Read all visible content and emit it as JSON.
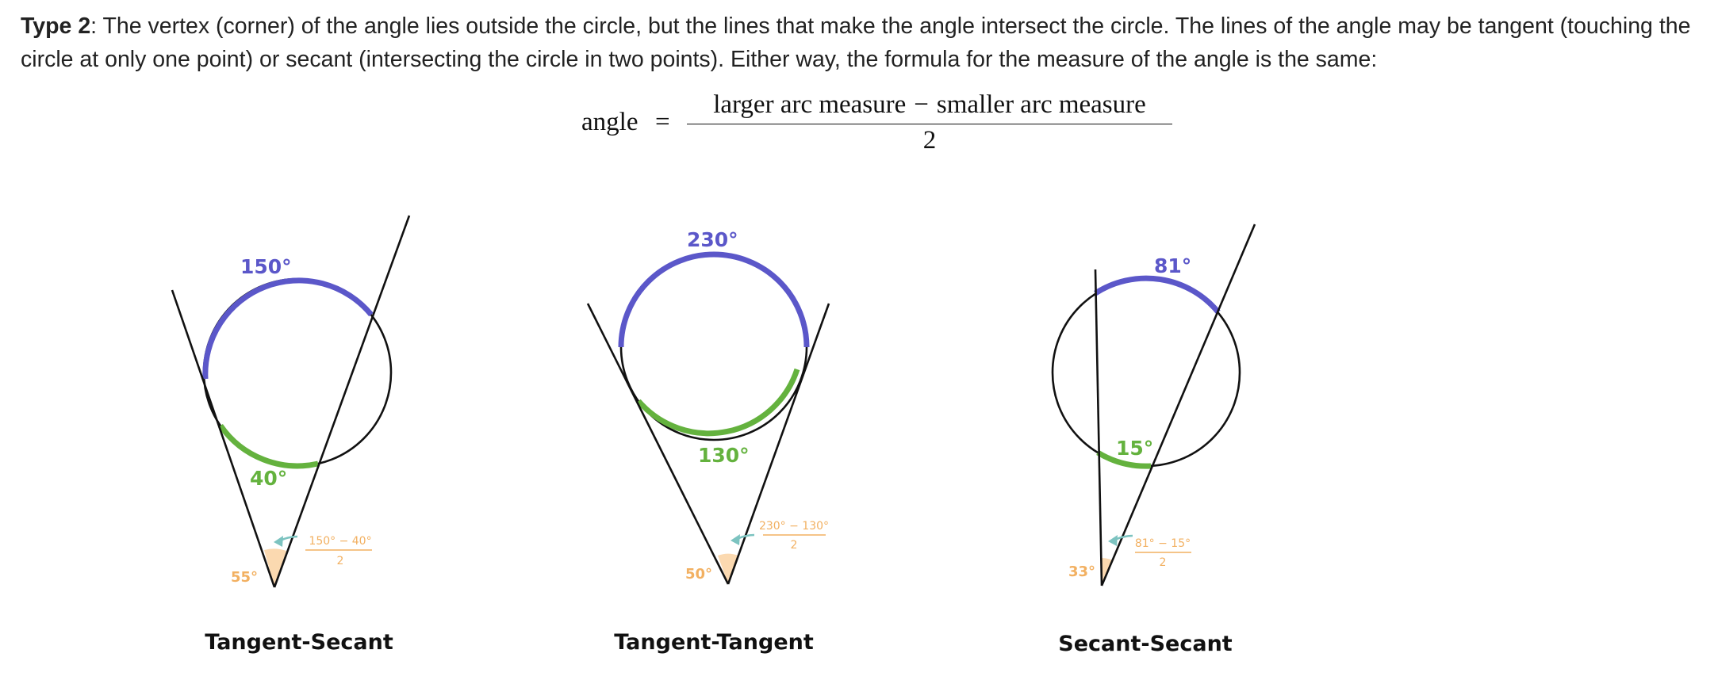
{
  "intro": {
    "lead": "Type 2",
    "text": ": The vertex (corner) of the angle lies outside the circle, but the lines that make the angle intersect the circle. The lines of the angle may be tangent (touching the circle at only one point) or secant (intersecting the circle in two points). Either way, the formula for the measure of the angle is the same:"
  },
  "formula": {
    "lhs": "angle",
    "equals": "=",
    "numerator_left": "larger arc measure",
    "minus": "−",
    "numerator_right": "smaller arc measure",
    "denominator": "2"
  },
  "colors": {
    "larger_arc": "#5b57c9",
    "smaller_arc": "#64b23e",
    "angle_fill": "#fbd9b0",
    "angle_text": "#f2b061",
    "pointer_arrow": "#7cc3c0",
    "lines": "#111111"
  },
  "diagrams": [
    {
      "caption": "Tangent-Secant",
      "larger_arc": "150°",
      "smaller_arc": "40°",
      "angle": "55°",
      "fraction_numerator": "150° − 40°",
      "fraction_denominator": "2"
    },
    {
      "caption": "Tangent-Tangent",
      "larger_arc": "230°",
      "smaller_arc": "130°",
      "angle": "50°",
      "fraction_numerator": "230° − 130°",
      "fraction_denominator": "2"
    },
    {
      "caption": "Secant-Secant",
      "larger_arc": "81°",
      "smaller_arc": "15°",
      "angle": "33°",
      "fraction_numerator": "81° − 15°",
      "fraction_denominator": "2"
    }
  ]
}
